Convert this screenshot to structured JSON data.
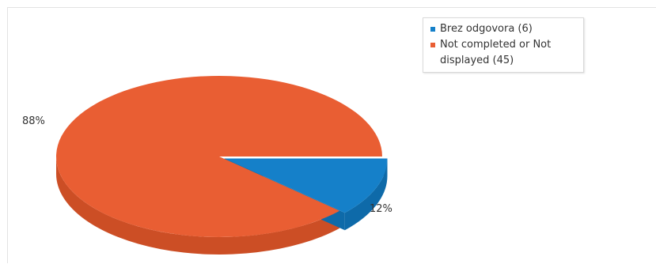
{
  "chart_data": {
    "type": "pie",
    "title": "",
    "slices": [
      {
        "label": "Brez odgovora",
        "value": 6,
        "percent_label": "12%",
        "color": "#1580c9",
        "side_color": "#0e6aa9"
      },
      {
        "label": "Not completed or Not displayed",
        "value": 45,
        "percent_label": "88%",
        "color": "#e95e33",
        "side_color": "#cc4e25"
      }
    ],
    "legend": {
      "placement": "top-right",
      "entries": [
        {
          "text": "Brez odgovora (6)",
          "color": "#1580c9"
        },
        {
          "text": "Not completed or Not displayed (45)",
          "color": "#e95e33"
        }
      ]
    },
    "style": "3d"
  }
}
